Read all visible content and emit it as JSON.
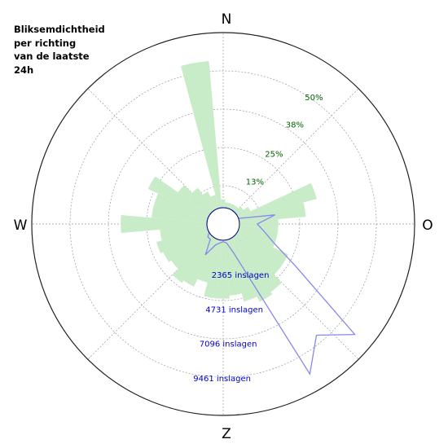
{
  "title": "Bliksemdichtheid\nper richting\nvan de laatste\n24h",
  "compass": {
    "n": "N",
    "e": "O",
    "s": "Z",
    "w": "W"
  },
  "colors": {
    "ring": "#222222",
    "grid": "#9a9a9a",
    "percent_labels": "#006400",
    "count_labels": "#0000cc",
    "density_fill": "#c8ebc8",
    "strikes_line": "#8888ee"
  },
  "chart_data": {
    "type": "polar",
    "title": "Bliksemdichtheid per richting van de laatste 24h",
    "grid": true,
    "percent_axis": {
      "ticks": [
        13,
        25,
        38,
        50
      ],
      "tick_labels": [
        "13%",
        "25%",
        "38%",
        "50%"
      ],
      "max": 63
    },
    "count_axis": {
      "ticks": [
        2365,
        4731,
        7096,
        9461
      ],
      "tick_labels": [
        "2365 inslagen",
        "4731 inslagen",
        "7096 inslagen",
        "9461 inslagen"
      ],
      "max": 11826
    },
    "density_percent_per_direction": {
      "directions_deg": [
        0,
        10,
        20,
        30,
        40,
        50,
        60,
        70,
        80,
        90,
        100,
        110,
        120,
        130,
        140,
        150,
        160,
        170,
        180,
        190,
        200,
        210,
        220,
        230,
        240,
        250,
        260,
        270,
        280,
        290,
        300,
        310,
        320,
        330,
        340,
        350
      ],
      "values": [
        3,
        2,
        2,
        2,
        2,
        3,
        5,
        29,
        24,
        14,
        14,
        14,
        20,
        20,
        24,
        25,
        23,
        20,
        21,
        21,
        16,
        19,
        20,
        17,
        18,
        19,
        17,
        31,
        20,
        20,
        24,
        14,
        10,
        7,
        5,
        53
      ]
    },
    "strikes_per_direction": {
      "directions_deg": [
        0,
        10,
        20,
        30,
        40,
        50,
        60,
        70,
        80,
        90,
        100,
        110,
        120,
        130,
        140,
        150,
        160,
        170,
        180,
        190,
        200,
        210,
        220,
        230,
        240,
        250,
        260,
        270,
        280,
        290,
        300,
        310,
        320,
        330,
        340,
        350
      ],
      "values": [
        0,
        0,
        0,
        0,
        0,
        0,
        0,
        0,
        2450,
        1200,
        1700,
        2500,
        4500,
        10500,
        8700,
        10600,
        1000,
        200,
        100,
        200,
        400,
        1300,
        250,
        250,
        0,
        0,
        0,
        0,
        0,
        0,
        0,
        0,
        0,
        0,
        0,
        0
      ]
    }
  }
}
